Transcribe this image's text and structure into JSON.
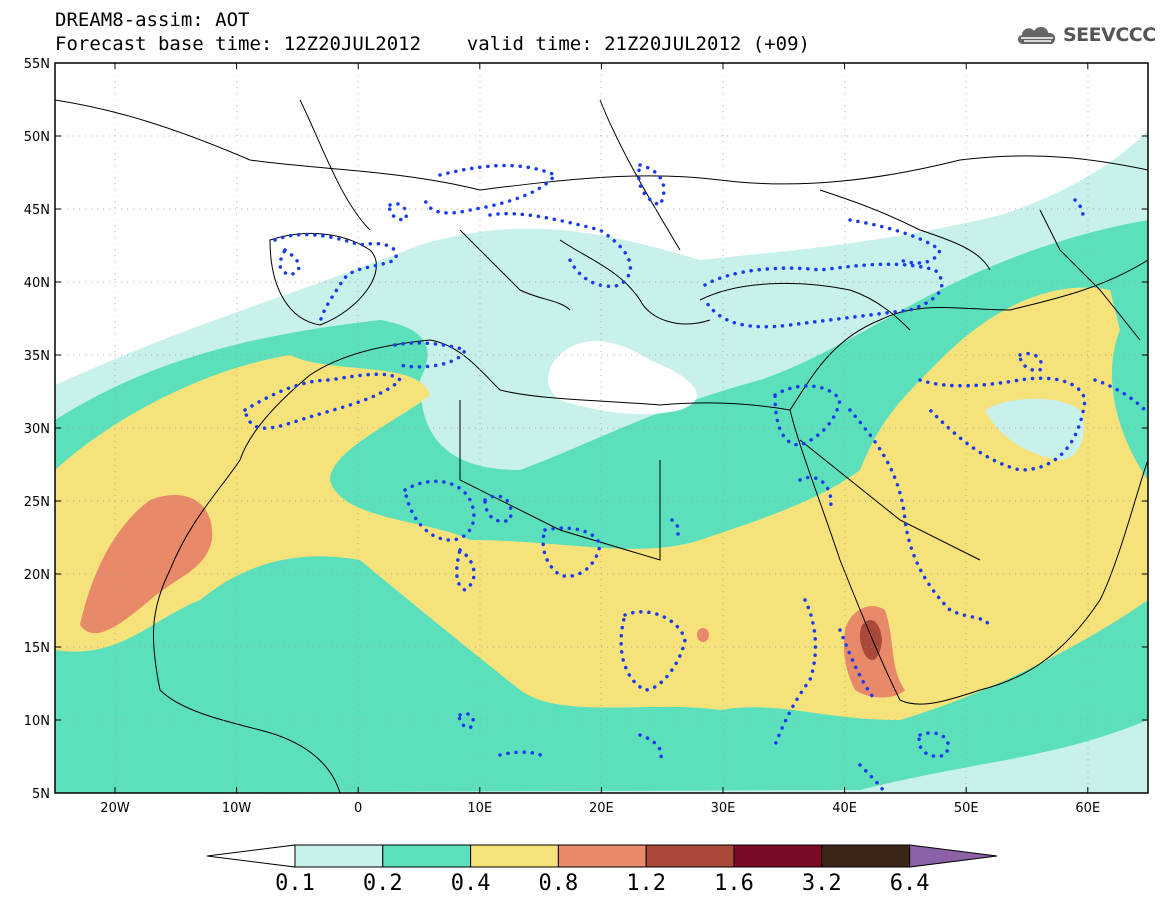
{
  "header": {
    "title_line1": "DREAM8-assim: AOT",
    "title_line2": "Forecast base time: 12Z20JUL2012    valid time: 21Z20JUL2012 (+09)",
    "logo_text": "SEEVCCC"
  },
  "axes": {
    "lat_labels": [
      "55N",
      "50N",
      "45N",
      "40N",
      "35N",
      "30N",
      "25N",
      "20N",
      "15N",
      "10N",
      "5N"
    ],
    "lon_labels": [
      "20W",
      "10W",
      "0",
      "10E",
      "20E",
      "30E",
      "40E",
      "50E",
      "60E"
    ]
  },
  "colorbar": {
    "labels": [
      "0.1",
      "0.2",
      "0.4",
      "0.8",
      "1.2",
      "1.6",
      "3.2",
      "6.4"
    ],
    "colors": [
      "#ffffff",
      "#c7f1ea",
      "#5ce0bc",
      "#f6e27a",
      "#e88a6a",
      "#a8493a",
      "#7a0a26",
      "#3a2516",
      "#8b62a8"
    ]
  },
  "legend": {
    "bins": [
      {
        "range": "< 0.1",
        "color": "#ffffff"
      },
      {
        "range": "0.1–0.2",
        "color": "#c7f1ea"
      },
      {
        "range": "0.2–0.4",
        "color": "#5ce0bc"
      },
      {
        "range": "0.4–0.8",
        "color": "#f6e27a"
      },
      {
        "range": "0.8–1.2",
        "color": "#e88a6a"
      },
      {
        "range": "1.2–1.6",
        "color": "#a8493a"
      },
      {
        "range": "1.6–3.2",
        "color": "#7a0a26"
      },
      {
        "range": "3.2–6.4",
        "color": "#3a2516"
      },
      {
        "range": "> 6.4",
        "color": "#8b62a8"
      }
    ]
  },
  "styles": {
    "dotted_contour_color": "#1a3aee",
    "coast_color": "#000000"
  }
}
